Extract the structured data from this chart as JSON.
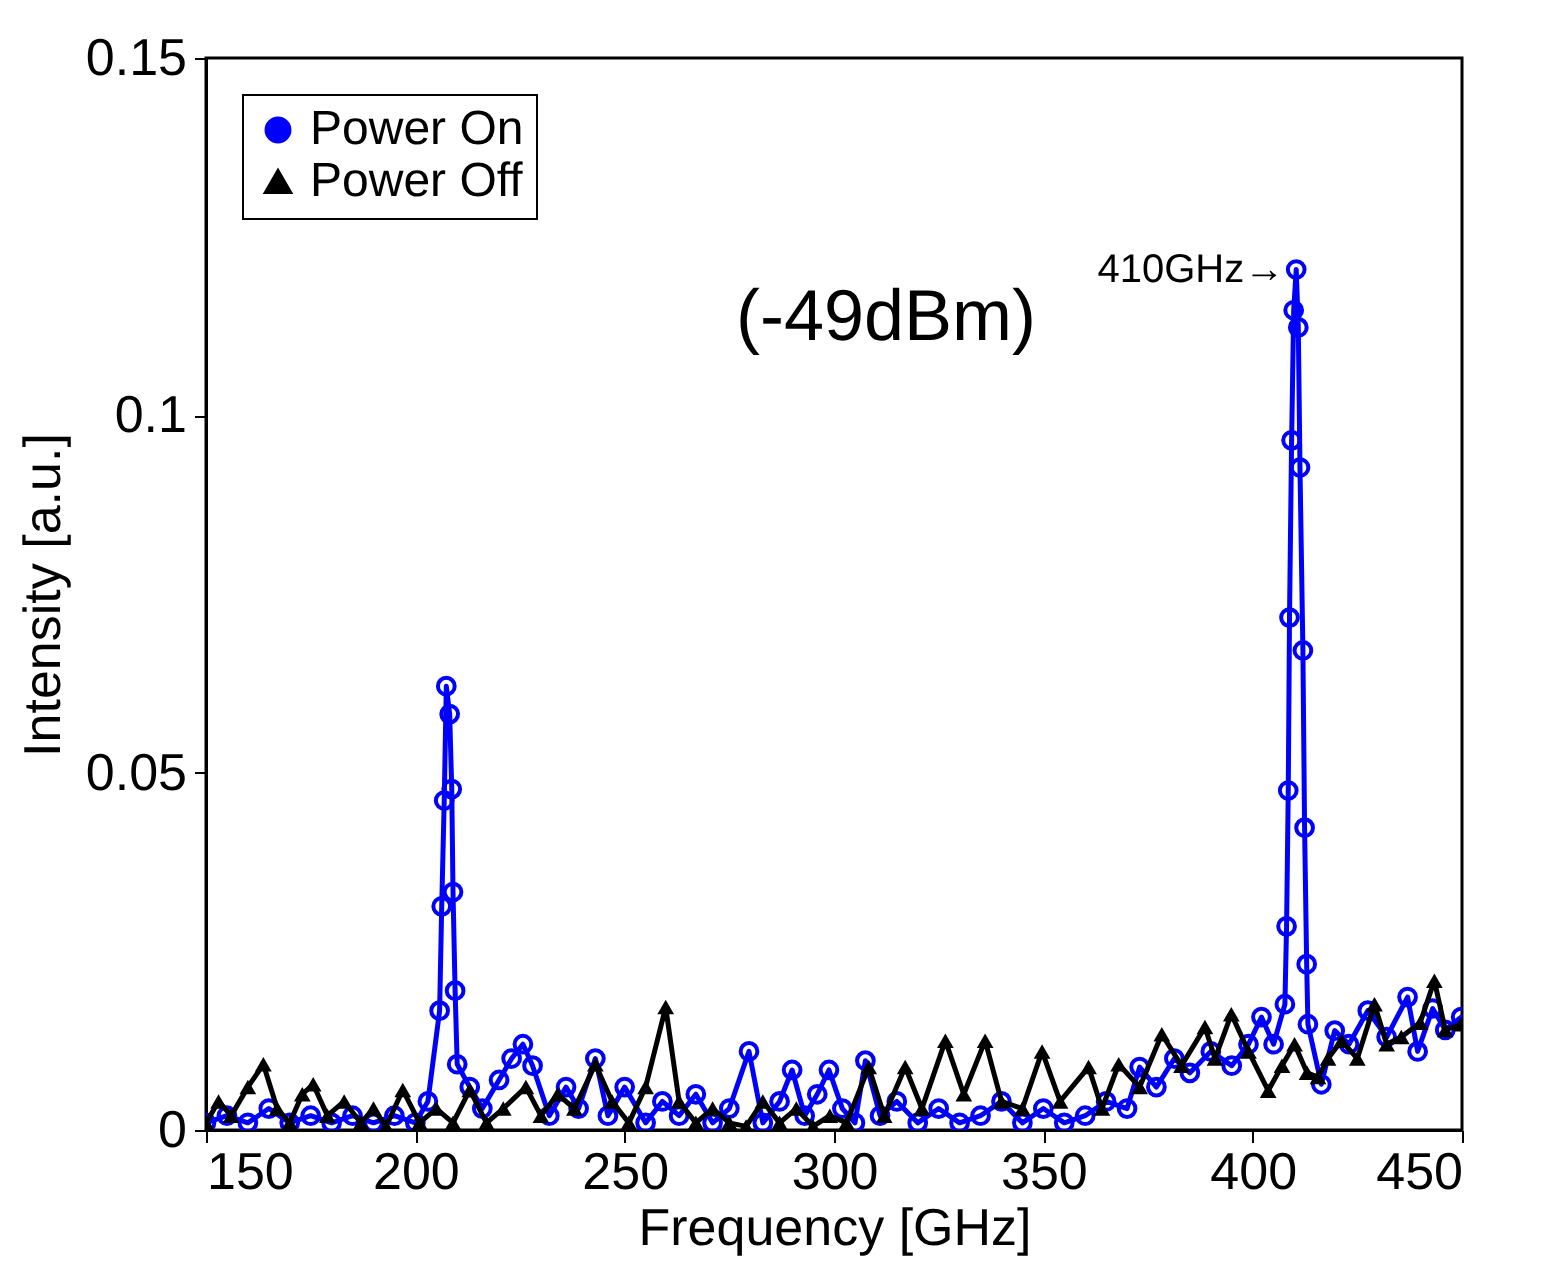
{
  "chart_data": {
    "type": "line",
    "xlabel": "Frequency [GHz]",
    "ylabel": "Intensity [a.u.]",
    "xlim": [
      150,
      450
    ],
    "xticks": [
      150,
      200,
      250,
      300,
      350,
      400,
      450
    ],
    "ylim": [
      0,
      0.15
    ],
    "yticks": [
      0,
      0.05,
      0.1,
      0.15
    ],
    "grid": false,
    "legend": "top left",
    "annotations": [
      {
        "text": "410GHz→",
        "x": 410.4,
        "y": 0.1204
      },
      "(-49dBm)"
    ],
    "series": [
      {
        "name": "Power On",
        "color": "#0000ff",
        "marker": "circle",
        "x": [
          150,
          155,
          160,
          165,
          170,
          175,
          180,
          185,
          190,
          195,
          200,
          203,
          205.8,
          206.3,
          206.9,
          207.4,
          208.2,
          208.7,
          209.0,
          209.5,
          210,
          213,
          216,
          220,
          223,
          225.7,
          228,
          232,
          236,
          239,
          243,
          246,
          250,
          255,
          259,
          263,
          267,
          271,
          275,
          279.7,
          283,
          287,
          290,
          293,
          296,
          298.8,
          302,
          305,
          307.5,
          311,
          315,
          320,
          325,
          330,
          335,
          340,
          345,
          350,
          355,
          360,
          365,
          370,
          373,
          377,
          381.3,
          385,
          390,
          395,
          399,
          402.1,
          405,
          407.7,
          408.1,
          408.5,
          408.8,
          409.3,
          409.8,
          410.4,
          410.9,
          411.3,
          412.0,
          412.4,
          412.9,
          413.2,
          416.4,
          419.6,
          423,
          427.5,
          432,
          437,
          439.4,
          443,
          446,
          449.8
        ],
        "values": [
          0.001,
          0.002,
          0.001,
          0.003,
          0.001,
          0.002,
          0.001,
          0.002,
          0.001,
          0.002,
          0.001,
          0.004,
          0.0167,
          0.0313,
          0.0461,
          0.0621,
          0.0582,
          0.0477,
          0.0333,
          0.0195,
          0.0092,
          0.006,
          0.003,
          0.007,
          0.01,
          0.012,
          0.009,
          0.002,
          0.006,
          0.003,
          0.01,
          0.002,
          0.006,
          0.001,
          0.004,
          0.002,
          0.005,
          0.001,
          0.003,
          0.011,
          0.001,
          0.004,
          0.0084,
          0.002,
          0.005,
          0.0084,
          0.003,
          0.001,
          0.0097,
          0.002,
          0.004,
          0.001,
          0.003,
          0.001,
          0.002,
          0.004,
          0.001,
          0.003,
          0.001,
          0.002,
          0.004,
          0.003,
          0.0088,
          0.006,
          0.01,
          0.008,
          0.011,
          0.009,
          0.012,
          0.0158,
          0.012,
          0.0176,
          0.0285,
          0.0475,
          0.0717,
          0.0965,
          0.1147,
          0.1204,
          0.1123,
          0.0927,
          0.0671,
          0.0423,
          0.0232,
          0.0148,
          0.0064,
          0.0139,
          0.012,
          0.0167,
          0.013,
          0.0186,
          0.011,
          0.017,
          0.014,
          0.0158
        ]
      },
      {
        "name": "Power Off",
        "color": "#000000",
        "marker": "triangle",
        "x": [
          150,
          153,
          156,
          160,
          163.7,
          167,
          170,
          173,
          175.6,
          179,
          183,
          187,
          190,
          193,
          197,
          201,
          205,
          209,
          213,
          217,
          221,
          226.4,
          230,
          234,
          238,
          243,
          247,
          251,
          255,
          259.8,
          263,
          267,
          271,
          275,
          279,
          283,
          287,
          291,
          295,
          299,
          303,
          308.3,
          312,
          317,
          321,
          326.6,
          331,
          336.1,
          340,
          345,
          349.7,
          354,
          360.8,
          364,
          368,
          373,
          378.3,
          383,
          388.6,
          391,
          394.9,
          399,
          403.7,
          407,
          410,
          413,
          415.6,
          418,
          421.2,
          425,
          429.1,
          432,
          435.5,
          440,
          443.4,
          446,
          449.8
        ],
        "values": [
          0.001,
          0.004,
          0.002,
          0.006,
          0.0092,
          0.003,
          0.001,
          0.005,
          0.0064,
          0.002,
          0.004,
          0.001,
          0.003,
          0.0005,
          0.0056,
          0.001,
          0.003,
          0.001,
          0.0056,
          0.001,
          0.003,
          0.006,
          0.002,
          0.005,
          0.003,
          0.0092,
          0.004,
          0.001,
          0.006,
          0.0172,
          0.004,
          0.001,
          0.003,
          0.001,
          0.0005,
          0.004,
          0.001,
          0.003,
          0.0005,
          0.002,
          0.001,
          0.0088,
          0.002,
          0.0088,
          0.003,
          0.0125,
          0.005,
          0.0125,
          0.004,
          0.003,
          0.011,
          0.004,
          0.0088,
          0.003,
          0.0092,
          0.006,
          0.0134,
          0.009,
          0.0144,
          0.01,
          0.0162,
          0.011,
          0.0055,
          0.009,
          0.012,
          0.008,
          0.0074,
          0.01,
          0.0125,
          0.01,
          0.0176,
          0.012,
          0.013,
          0.015,
          0.0209,
          0.014,
          0.0148
        ]
      }
    ]
  }
}
